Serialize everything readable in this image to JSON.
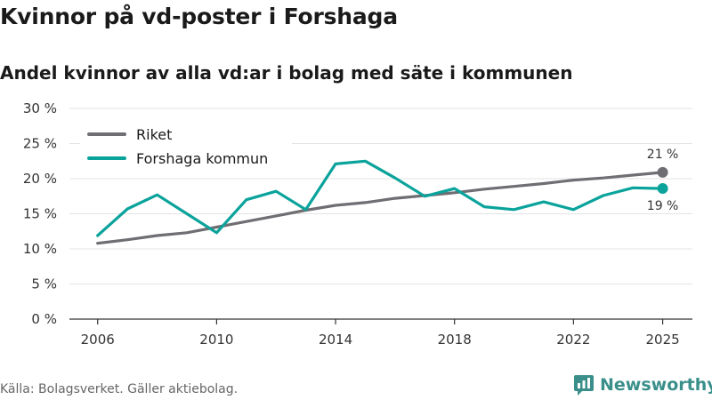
{
  "header": {
    "title": "Kvinnor på vd-poster i Forshaga",
    "subtitle": "Andel kvinnor av alla vd:ar i bolag med säte i kommunen"
  },
  "footer": {
    "source": "Källa: Bolagsverket. Gäller aktiebolag.",
    "brand": "Newsworthy"
  },
  "chart_data": {
    "type": "line",
    "title": "Kvinnor på vd-poster i Forshaga",
    "subtitle": "Andel kvinnor av alla vd:ar i bolag med säte i kommunen",
    "xlabel": "",
    "ylabel": "",
    "x": [
      2006,
      2007,
      2008,
      2009,
      2010,
      2011,
      2012,
      2013,
      2014,
      2015,
      2016,
      2017,
      2018,
      2019,
      2020,
      2021,
      2022,
      2023,
      2024,
      2025
    ],
    "xticks": [
      2006,
      2010,
      2014,
      2018,
      2022,
      2025
    ],
    "xtick_labels": [
      "2006",
      "2010",
      "2014",
      "2018",
      "2022",
      "2025"
    ],
    "ylim": [
      0,
      30
    ],
    "yticks": [
      0,
      5,
      10,
      15,
      20,
      25,
      30
    ],
    "ytick_labels": [
      "0 %",
      "5 %",
      "10 %",
      "15 %",
      "20 %",
      "25 %",
      "30 %"
    ],
    "grid": true,
    "legend_position": "top-left",
    "series": [
      {
        "name": "Riket",
        "color": "#6e6e73",
        "values": [
          10.8,
          11.3,
          11.9,
          12.3,
          13.1,
          13.9,
          14.7,
          15.5,
          16.2,
          16.6,
          17.2,
          17.6,
          18.0,
          18.5,
          18.9,
          19.3,
          19.8,
          20.1,
          20.5,
          20.9
        ],
        "end_label": "21 %"
      },
      {
        "name": "Forshaga kommun",
        "color": "#0aa39b",
        "values": [
          11.9,
          15.7,
          17.7,
          15.0,
          12.3,
          17.0,
          18.2,
          15.6,
          22.1,
          22.5,
          20.1,
          17.5,
          18.6,
          16.0,
          15.6,
          16.7,
          15.6,
          17.6,
          18.7,
          18.6
        ],
        "end_label": "19 %"
      }
    ]
  }
}
